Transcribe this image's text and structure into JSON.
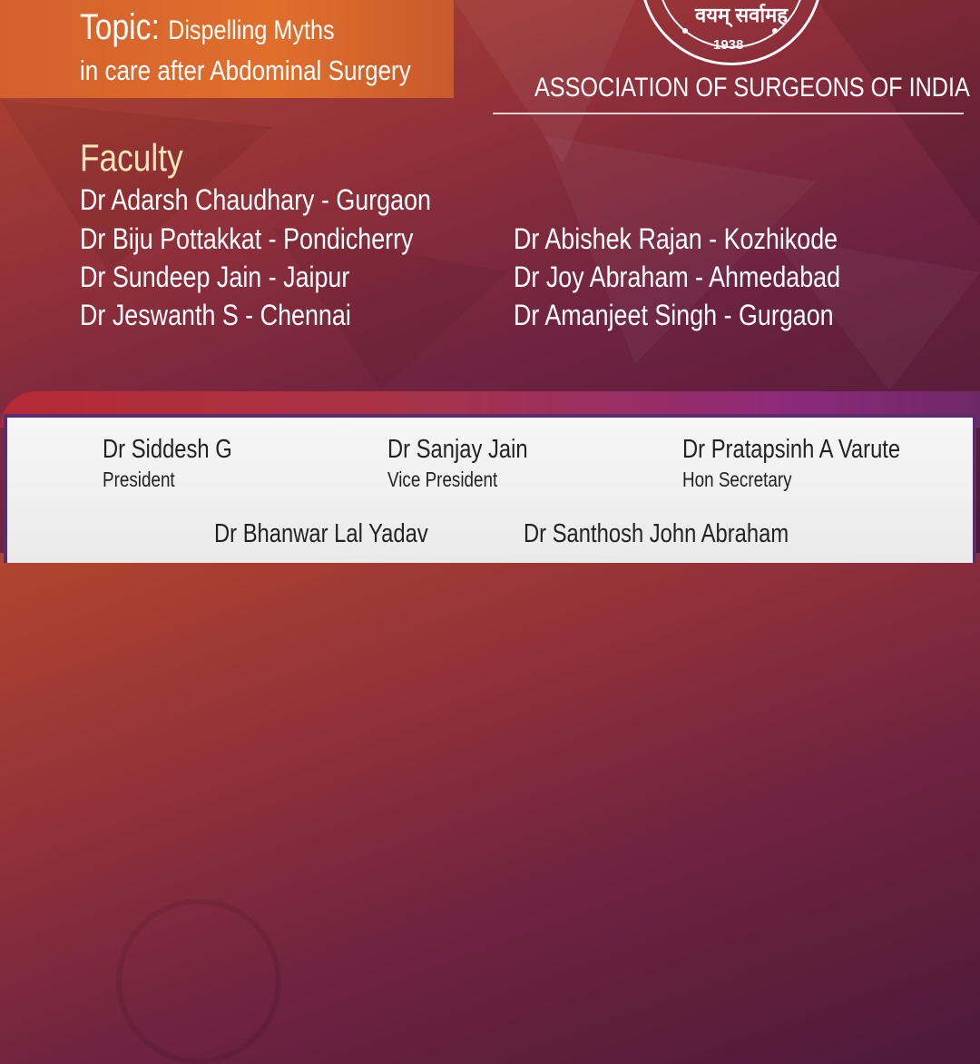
{
  "topic": {
    "label": "Topic:",
    "line1": "Dispelling Myths",
    "line2": "in care after Abdominal Surgery"
  },
  "logo": {
    "motto": "वयम् सर्वामह",
    "year": "1938"
  },
  "organization": "ASSOCIATION OF SURGEONS OF INDIA",
  "faculty": {
    "heading": "Faculty",
    "left": [
      "Dr Adarsh Chaudhary - Gurgaon",
      "Dr Biju Pottakkat - Pondicherry",
      "Dr Sundeep Jain - Jaipur",
      "Dr Jeswanth S - Chennai"
    ],
    "right": [
      "Dr Abishek Rajan - Kozhikode",
      "Dr Joy Abraham - Ahmedabad",
      "Dr Amanjeet Singh - Gurgaon"
    ]
  },
  "office_bearers": [
    {
      "name": "Dr Siddesh G",
      "role": "President"
    },
    {
      "name": "Dr Sanjay Jain",
      "role": "Vice President"
    },
    {
      "name": "Dr Pratapsinh A Varute",
      "role": "Hon Secretary"
    },
    {
      "name": "Dr Bhanwar Lal Yadav"
    },
    {
      "name": "Dr Santhosh John Abraham"
    }
  ],
  "colors": {
    "orange": "#e06f2c",
    "maroon": "#6e2340",
    "purple": "#5b2d6e"
  }
}
